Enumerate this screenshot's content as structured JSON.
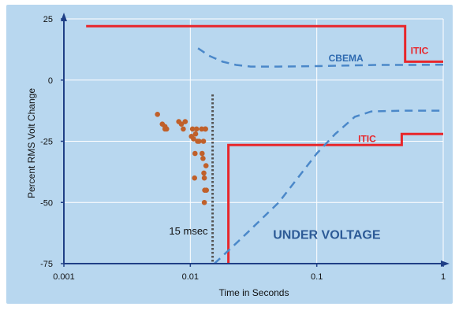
{
  "chart_data": {
    "type": "line",
    "xlabel": "Time in Seconds",
    "ylabel": "Percent RMS Volt Change",
    "x_scale": "log",
    "xlim": [
      0.001,
      1
    ],
    "ylim": [
      -75,
      25
    ],
    "x_ticks": [
      {
        "value": 0.001,
        "label": "0.001"
      },
      {
        "value": 0.01,
        "label": "0.01"
      },
      {
        "value": 0.1,
        "label": "0.1"
      },
      {
        "value": 1,
        "label": "1"
      }
    ],
    "y_ticks": [
      {
        "value": 25,
        "label": "25"
      },
      {
        "value": 0,
        "label": "0"
      },
      {
        "value": -25,
        "label": "-25"
      },
      {
        "value": -50,
        "label": "-50"
      },
      {
        "value": -75,
        "label": "-75"
      }
    ],
    "series": [
      {
        "name": "ITIC",
        "style": "solid",
        "color": "#e8262b",
        "points": [
          [
            0.0015,
            22
          ],
          [
            0.5,
            22
          ],
          [
            0.5,
            7.5
          ],
          [
            1.0,
            7.5
          ]
        ]
      },
      {
        "name": "ITIC",
        "style": "solid",
        "color": "#e8262b",
        "points": [
          [
            0.02,
            -75
          ],
          [
            0.02,
            -26.5
          ],
          [
            0.47,
            -26.5
          ],
          [
            0.47,
            -22
          ],
          [
            1.0,
            -22
          ]
        ]
      },
      {
        "name": "CBEMA",
        "style": "dashed",
        "color": "#4b88c9",
        "points": [
          [
            0.0115,
            13
          ],
          [
            0.014,
            10
          ],
          [
            0.018,
            7.5
          ],
          [
            0.023,
            6.2
          ],
          [
            0.03,
            5.5
          ],
          [
            0.05,
            5.5
          ],
          [
            0.1,
            5.7
          ],
          [
            0.3,
            6.2
          ],
          [
            0.6,
            6.2
          ],
          [
            1.0,
            6.3
          ]
        ]
      },
      {
        "name": "CBEMA",
        "style": "dashed",
        "color": "#4b88c9",
        "points": [
          [
            0.0155,
            -75
          ],
          [
            0.025,
            -65
          ],
          [
            0.05,
            -50
          ],
          [
            0.1,
            -30
          ],
          [
            0.14,
            -22
          ],
          [
            0.2,
            -15
          ],
          [
            0.27,
            -12.8
          ],
          [
            0.5,
            -12.5
          ],
          [
            1.0,
            -12.5
          ]
        ]
      }
    ],
    "scatter": {
      "color": "#c0602a",
      "points": [
        [
          0.0055,
          -14
        ],
        [
          0.006,
          -18
        ],
        [
          0.0063,
          -19
        ],
        [
          0.0063,
          -20
        ],
        [
          0.0065,
          -20
        ],
        [
          0.0081,
          -17
        ],
        [
          0.0085,
          -18
        ],
        [
          0.0088,
          -20
        ],
        [
          0.0091,
          -17
        ],
        [
          0.0102,
          -23
        ],
        [
          0.0104,
          -20
        ],
        [
          0.0106,
          -24
        ],
        [
          0.0108,
          -40
        ],
        [
          0.0109,
          -30
        ],
        [
          0.011,
          -22
        ],
        [
          0.0112,
          -20
        ],
        [
          0.0114,
          -25
        ],
        [
          0.0117,
          -25
        ],
        [
          0.0123,
          -20
        ],
        [
          0.0124,
          -30
        ],
        [
          0.0126,
          -32
        ],
        [
          0.0127,
          -25
        ],
        [
          0.0128,
          -38
        ],
        [
          0.0129,
          -40
        ],
        [
          0.0129,
          -50
        ],
        [
          0.013,
          -45
        ],
        [
          0.0131,
          -20
        ],
        [
          0.0132,
          -20
        ],
        [
          0.0133,
          -35
        ],
        [
          0.0134,
          -45
        ]
      ]
    },
    "reference_line": {
      "x": 0.015,
      "label": "15 msec",
      "color": "#555555"
    },
    "annotations": [
      {
        "text": "ITIC",
        "color": "#e8262b",
        "x": 0.65,
        "y": 12
      },
      {
        "text": "CBEMA",
        "color": "#2e6ab0",
        "x": 0.17,
        "y": 9
      },
      {
        "text": "ITIC",
        "color": "#e8262b",
        "x": 0.25,
        "y": -24
      },
      {
        "text": "UNDER VOLTAGE",
        "color": "#2c5a96",
        "x": 0.12,
        "y": -63
      }
    ],
    "colors": {
      "plot_background": "#b8d7ef",
      "axis": "#1f3f86",
      "gridline": "#ffffff"
    }
  }
}
